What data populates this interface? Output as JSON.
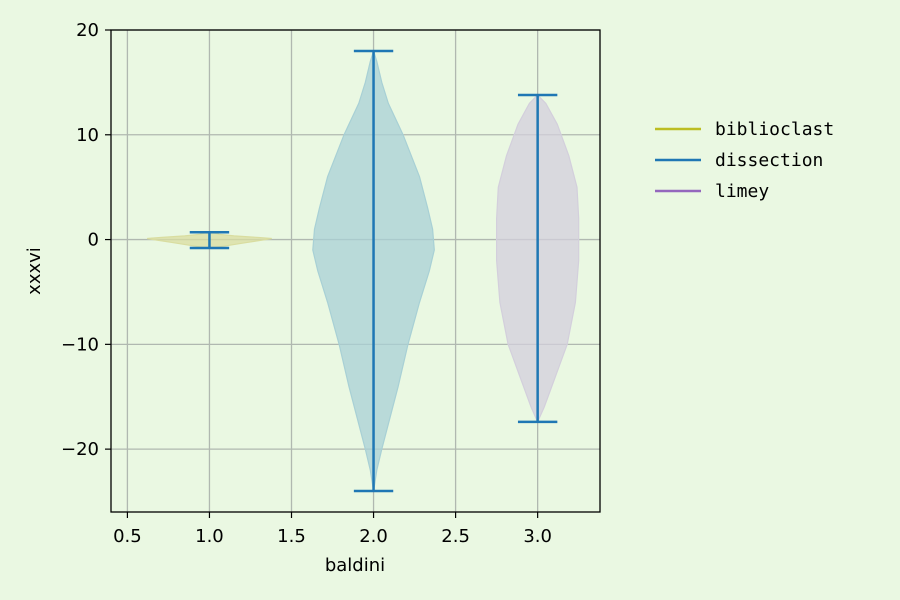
{
  "chart_data": {
    "type": "violin",
    "xlabel": "baldini",
    "ylabel": "xxxvi",
    "xlim": [
      0.4,
      3.38
    ],
    "ylim": [
      -26,
      20
    ],
    "x_ticks": [
      "0.5",
      "1.0",
      "1.5",
      "2.0",
      "2.5",
      "3.0"
    ],
    "y_ticks": [
      "−20",
      "−10",
      "0",
      "10",
      "20"
    ],
    "grid": true,
    "legend_position": "right",
    "series": [
      {
        "name": "biblioclast",
        "position": 1.0,
        "min": -0.8,
        "max": 0.7,
        "color": "#bcbd22",
        "fill": "#d9dda0",
        "profile": [
          [
            -0.8,
            0.02
          ],
          [
            -0.55,
            0.12
          ],
          [
            -0.3,
            0.22
          ],
          [
            -0.05,
            0.32
          ],
          [
            0.1,
            0.38
          ],
          [
            0.2,
            0.3
          ],
          [
            0.35,
            0.15
          ],
          [
            0.5,
            0.06
          ],
          [
            0.7,
            0.01
          ]
        ]
      },
      {
        "name": "dissection",
        "position": 2.0,
        "min": -24.0,
        "max": 18.0,
        "color": "#1f77b4",
        "fill": "#a8d0d5",
        "profile": [
          [
            -24,
            0.0
          ],
          [
            -22,
            0.02
          ],
          [
            -20,
            0.05
          ],
          [
            -17,
            0.1
          ],
          [
            -14,
            0.15
          ],
          [
            -10,
            0.21
          ],
          [
            -6,
            0.28
          ],
          [
            -3,
            0.34
          ],
          [
            -1,
            0.37
          ],
          [
            1,
            0.36
          ],
          [
            3,
            0.33
          ],
          [
            6,
            0.28
          ],
          [
            10,
            0.18
          ],
          [
            13,
            0.09
          ],
          [
            15,
            0.05
          ],
          [
            17,
            0.02
          ],
          [
            18,
            0.0
          ]
        ]
      },
      {
        "name": "limey",
        "position": 3.0,
        "min": -17.4,
        "max": 13.8,
        "color": "#9467bd",
        "fill": "#d3cfdc",
        "profile": [
          [
            -17.4,
            0.0
          ],
          [
            -16,
            0.04
          ],
          [
            -13,
            0.11
          ],
          [
            -10,
            0.18
          ],
          [
            -6,
            0.23
          ],
          [
            -2,
            0.25
          ],
          [
            2,
            0.25
          ],
          [
            5,
            0.24
          ],
          [
            8,
            0.19
          ],
          [
            11,
            0.12
          ],
          [
            13,
            0.05
          ],
          [
            13.8,
            0.0
          ]
        ]
      }
    ]
  }
}
